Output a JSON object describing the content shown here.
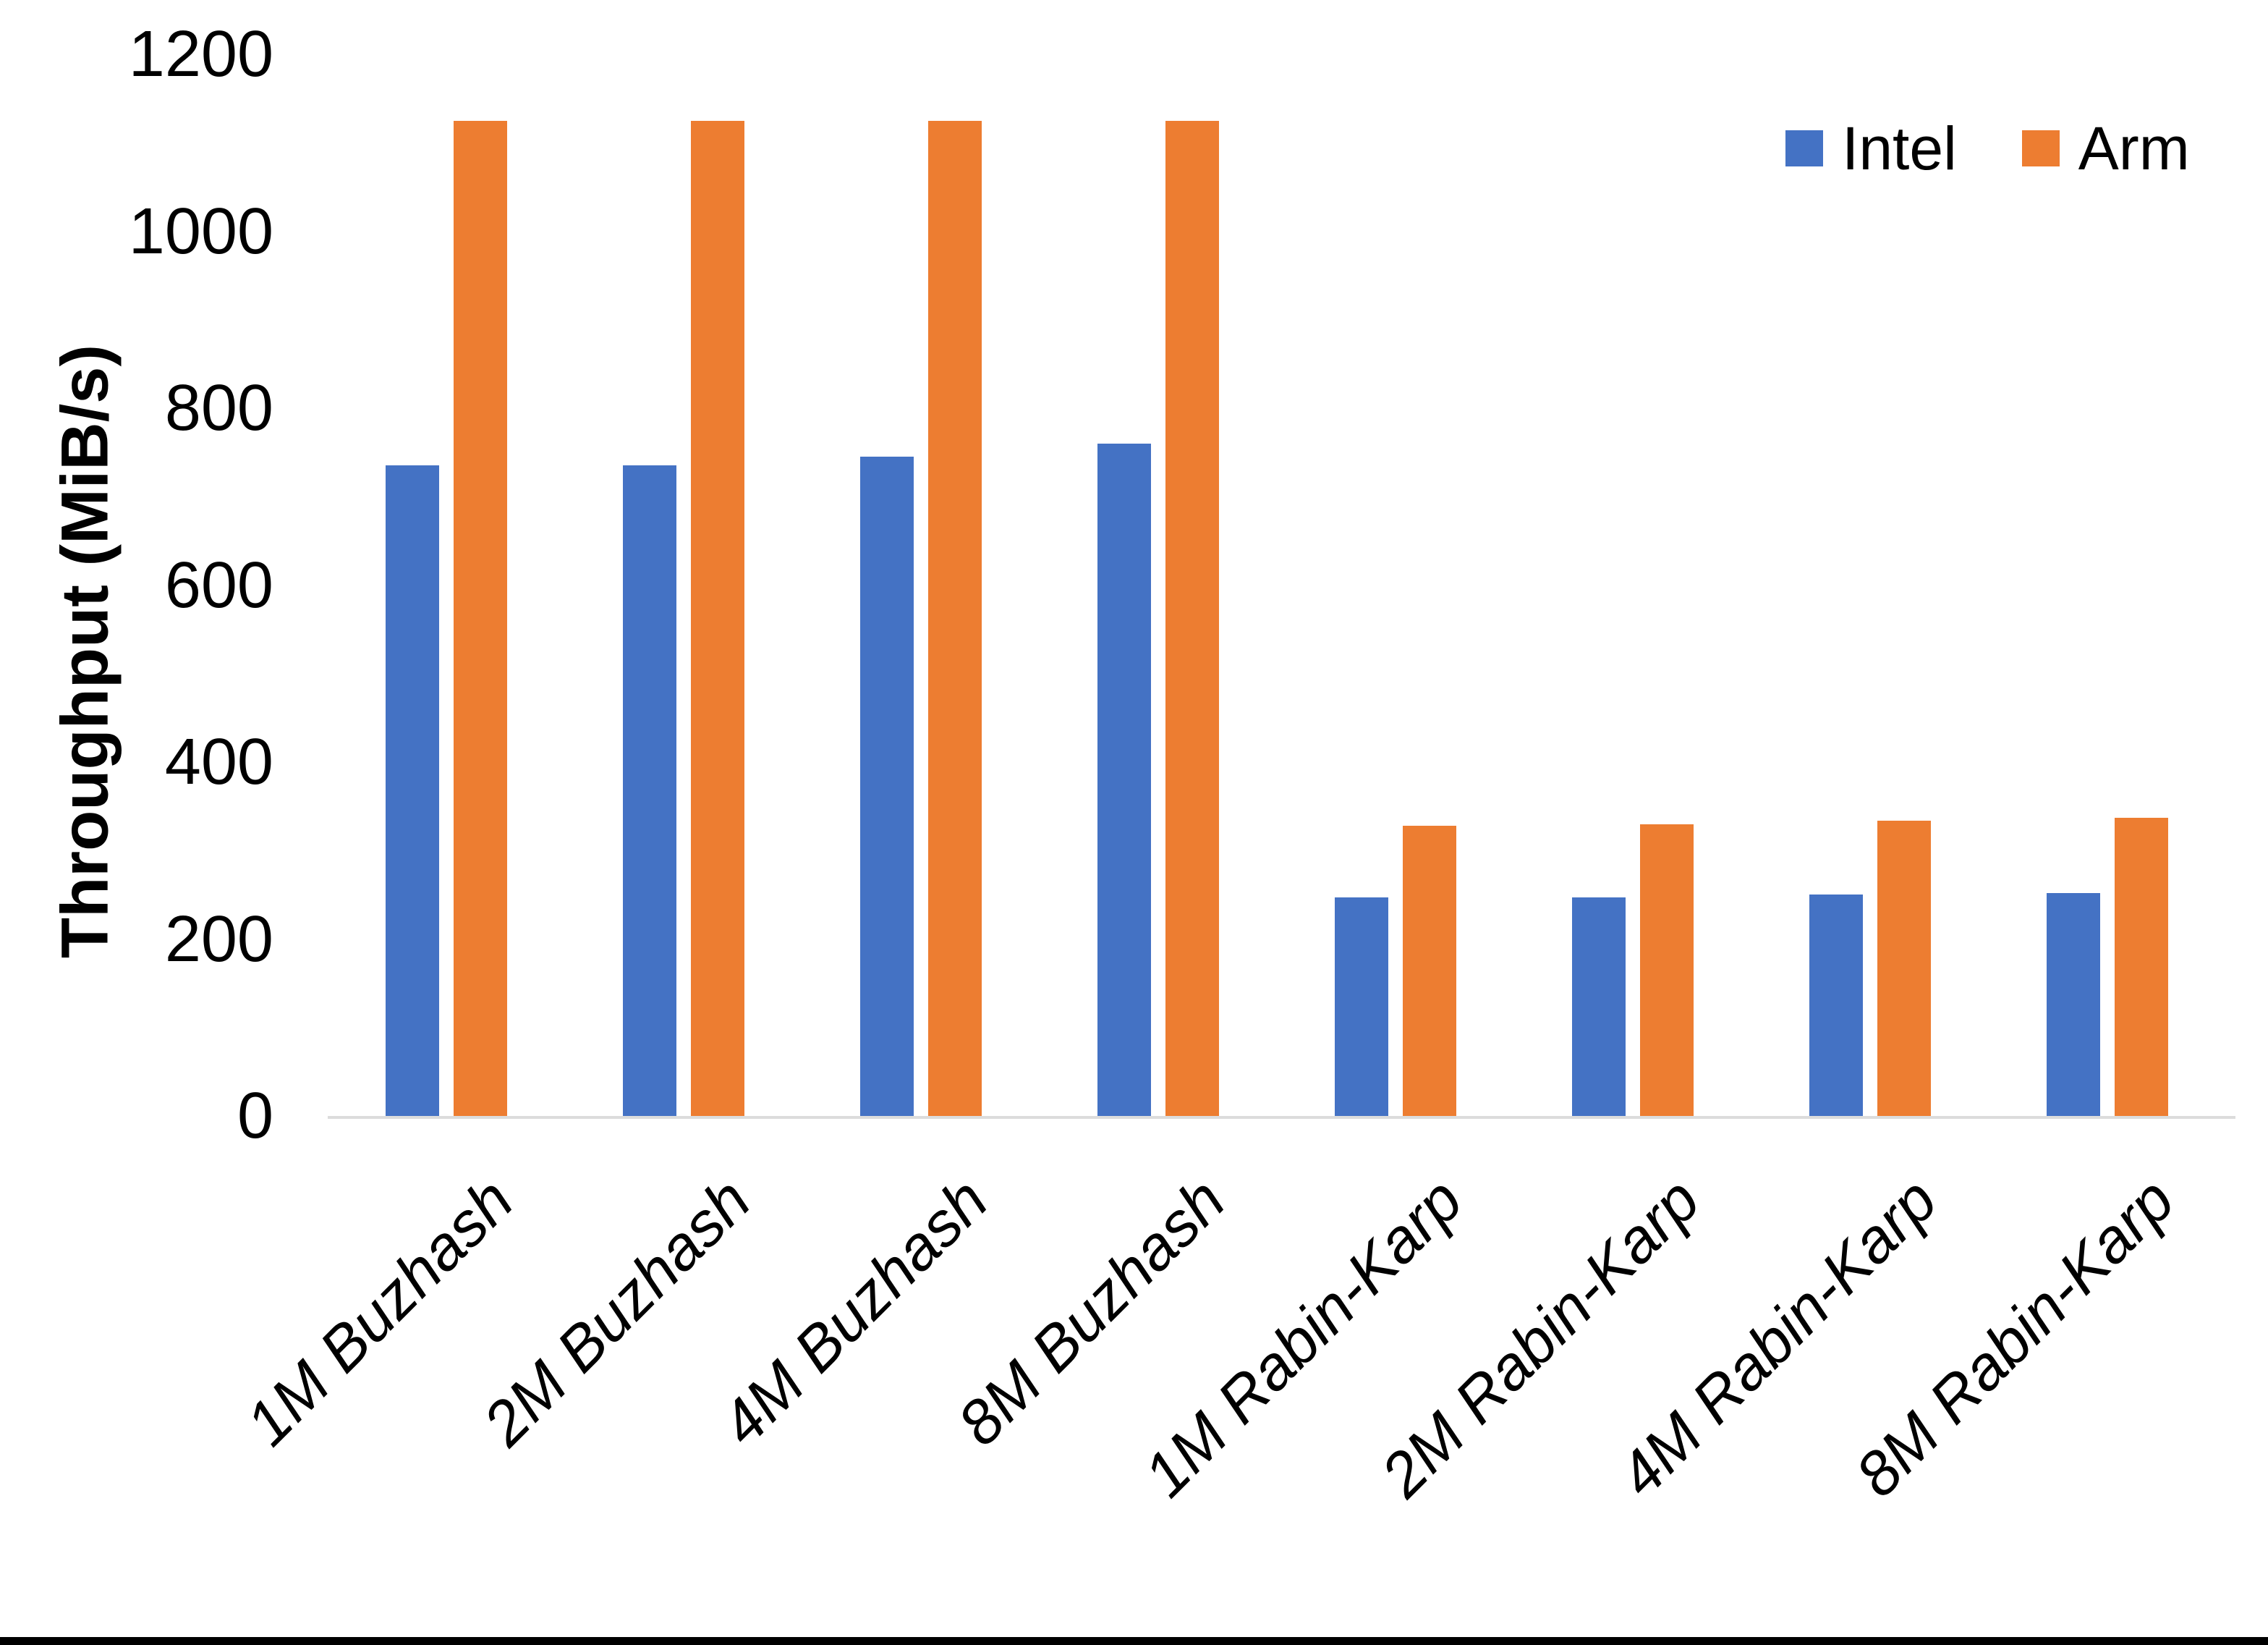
{
  "chart_data": {
    "type": "bar",
    "title": "",
    "xlabel": "",
    "ylabel": "Throughput (MiB/s)",
    "ylim": [
      0,
      1200
    ],
    "yticks": [
      0,
      200,
      400,
      600,
      800,
      1000,
      1200
    ],
    "grid": false,
    "legend_position": "top-right",
    "categories": [
      "1M Buzhash",
      "2M Buzhash",
      "4M Buzhash",
      "8M Buzhash",
      "1M Rabin-Karp",
      "2M Rabin-Karp",
      "4M Rabin-Karp",
      "8M Rabin-Karp"
    ],
    "series": [
      {
        "name": "Intel",
        "color": "#4472C4",
        "values": [
          735,
          735,
          745,
          760,
          247,
          247,
          250,
          252
        ]
      },
      {
        "name": "Arm",
        "color": "#ED7D31",
        "values": [
          1125,
          1125,
          1125,
          1125,
          328,
          330,
          334,
          337
        ]
      }
    ]
  },
  "colors": {
    "background": "#FFFFFF",
    "axis_line": "#DCDCDC",
    "text": "#000000",
    "bottom_border": "#000000"
  }
}
